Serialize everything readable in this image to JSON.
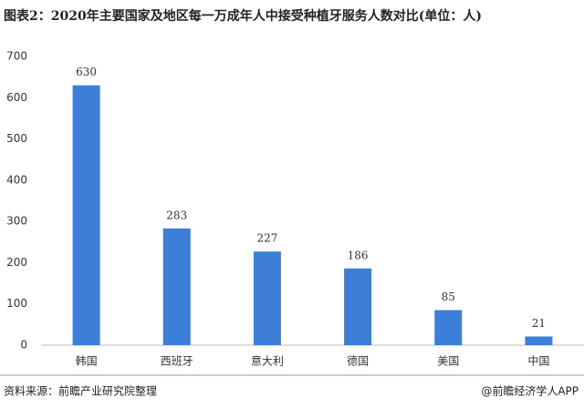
{
  "chart_data": {
    "type": "bar",
    "title": "图表2：2020年主要国家及地区每一万成年人中接受种植牙服务人数对比(单位：人)",
    "categories": [
      "韩国",
      "西班牙",
      "意大利",
      "德国",
      "美国",
      "中国"
    ],
    "values": [
      630,
      283,
      227,
      186,
      85,
      21
    ],
    "color": "#3b7fd8",
    "ylim": [
      0,
      700
    ],
    "yticks": [
      0,
      100,
      200,
      300,
      400,
      500,
      600,
      700
    ],
    "grid": false
  },
  "footer": {
    "source": "资料来源：前瞻产业研究院整理",
    "credit": "@前瞻经济学人APP"
  }
}
